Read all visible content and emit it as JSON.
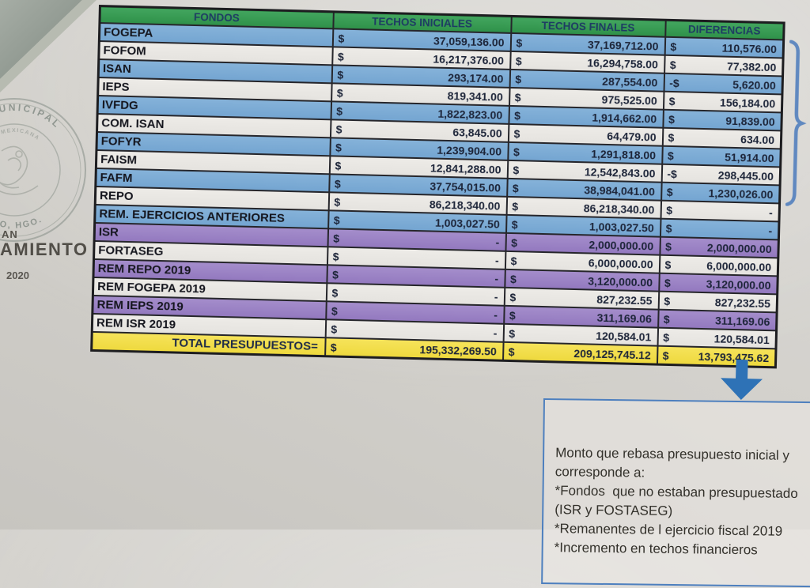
{
  "colors": {
    "header_green": "#389a52",
    "row_blue": "#7eadd6",
    "row_white": "#eae8e4",
    "row_purple": "#9c84c6",
    "total_yellow": "#f3df4d",
    "accent_blue": "#2e72b6",
    "border_black": "#26262b"
  },
  "table": {
    "headers": {
      "fondos": "FONDOS",
      "techos_iniciales": "TECHOS INICIALES",
      "techos_finales": "TECHOS FINALES",
      "diferencias": "DIFERENCIAS"
    },
    "rows": [
      {
        "fondo": "FOGEPA",
        "ini_sign": "$",
        "ini": "37,059,136.00",
        "fin_sign": "$",
        "fin": "37,169,712.00",
        "dif_sign": "$",
        "dif": "110,576.00",
        "tone": "blue"
      },
      {
        "fondo": "FOFOM",
        "ini_sign": "$",
        "ini": "16,217,376.00",
        "fin_sign": "$",
        "fin": "16,294,758.00",
        "dif_sign": "$",
        "dif": "77,382.00",
        "tone": "white"
      },
      {
        "fondo": "ISAN",
        "ini_sign": "$",
        "ini": "293,174.00",
        "fin_sign": "$",
        "fin": "287,554.00",
        "dif_sign": "-$",
        "dif": "5,620.00",
        "tone": "blue"
      },
      {
        "fondo": "IEPS",
        "ini_sign": "$",
        "ini": "819,341.00",
        "fin_sign": "$",
        "fin": "975,525.00",
        "dif_sign": "$",
        "dif": "156,184.00",
        "tone": "white"
      },
      {
        "fondo": "IVFDG",
        "ini_sign": "$",
        "ini": "1,822,823.00",
        "fin_sign": "$",
        "fin": "1,914,662.00",
        "dif_sign": "$",
        "dif": "91,839.00",
        "tone": "blue"
      },
      {
        "fondo": "COM. ISAN",
        "ini_sign": "$",
        "ini": "63,845.00",
        "fin_sign": "$",
        "fin": "64,479.00",
        "dif_sign": "$",
        "dif": "634.00",
        "tone": "white"
      },
      {
        "fondo": "FOFYR",
        "ini_sign": "$",
        "ini": "1,239,904.00",
        "fin_sign": "$",
        "fin": "1,291,818.00",
        "dif_sign": "$",
        "dif": "51,914.00",
        "tone": "blue"
      },
      {
        "fondo": "FAISM",
        "ini_sign": "$",
        "ini": "12,841,288.00",
        "fin_sign": "$",
        "fin": "12,542,843.00",
        "dif_sign": "-$",
        "dif": "298,445.00",
        "tone": "white"
      },
      {
        "fondo": "FAFM",
        "ini_sign": "$",
        "ini": "37,754,015.00",
        "fin_sign": "$",
        "fin": "38,984,041.00",
        "dif_sign": "$",
        "dif": "1,230,026.00",
        "tone": "blue"
      },
      {
        "fondo": "REPO",
        "ini_sign": "$",
        "ini": "86,218,340.00",
        "fin_sign": "$",
        "fin": "86,218,340.00",
        "dif_sign": "$",
        "dif": "-",
        "tone": "white"
      },
      {
        "fondo": "REM. EJERCICIOS ANTERIORES",
        "ini_sign": "$",
        "ini": "1,003,027.50",
        "fin_sign": "$",
        "fin": "1,003,027.50",
        "dif_sign": "$",
        "dif": "-",
        "tone": "blue"
      },
      {
        "fondo": "ISR",
        "ini_sign": "$",
        "ini": "-",
        "fin_sign": "$",
        "fin": "2,000,000.00",
        "dif_sign": "$",
        "dif": "2,000,000.00",
        "tone": "purple"
      },
      {
        "fondo": "FORTASEG",
        "ini_sign": "$",
        "ini": "-",
        "fin_sign": "$",
        "fin": "6,000,000.00",
        "dif_sign": "$",
        "dif": "6,000,000.00",
        "tone": "white"
      },
      {
        "fondo": "REM REPO 2019",
        "ini_sign": "$",
        "ini": "-",
        "fin_sign": "$",
        "fin": "3,120,000.00",
        "dif_sign": "$",
        "dif": "3,120,000.00",
        "tone": "purple"
      },
      {
        "fondo": "REM FOGEPA 2019",
        "ini_sign": "$",
        "ini": "-",
        "fin_sign": "$",
        "fin": "827,232.55",
        "dif_sign": "$",
        "dif": "827,232.55",
        "tone": "white"
      },
      {
        "fondo": "REM IEPS 2019",
        "ini_sign": "$",
        "ini": "-",
        "fin_sign": "$",
        "fin": "311,169.06",
        "dif_sign": "$",
        "dif": "311,169.06",
        "tone": "purple"
      },
      {
        "fondo": "REM ISR 2019",
        "ini_sign": "$",
        "ini": "-",
        "fin_sign": "$",
        "fin": "120,584.01",
        "dif_sign": "$",
        "dif": "120,584.01",
        "tone": "white"
      }
    ],
    "total_row": {
      "label": "TOTAL PRESUPUESTOS=",
      "iniciales_sign": "$",
      "iniciales": "195,332,269.50",
      "finales_sign": "$",
      "finales": "209,125,745.12",
      "diferencias_sign": "$",
      "diferencias": "13,793,475.62"
    }
  },
  "stamp": {
    "arc_top": "RA MUNICIPAL",
    "arc_inner": "CA MEXICANA",
    "arc_bottom": "LCO, HGO.",
    "fragment_1": "AN",
    "fragment_2": "AMIENTO",
    "fragment_3": "2020"
  },
  "callout": {
    "lines": [
      "Monto que rebasa presupuesto inicial y",
      "corresponde a:",
      "*Fondos  que no estaban presupuestado",
      "(ISR y FOSTASEG)",
      "*Remanentes de l ejercicio fiscal 2019",
      "*Incremento en techos financieros"
    ]
  }
}
